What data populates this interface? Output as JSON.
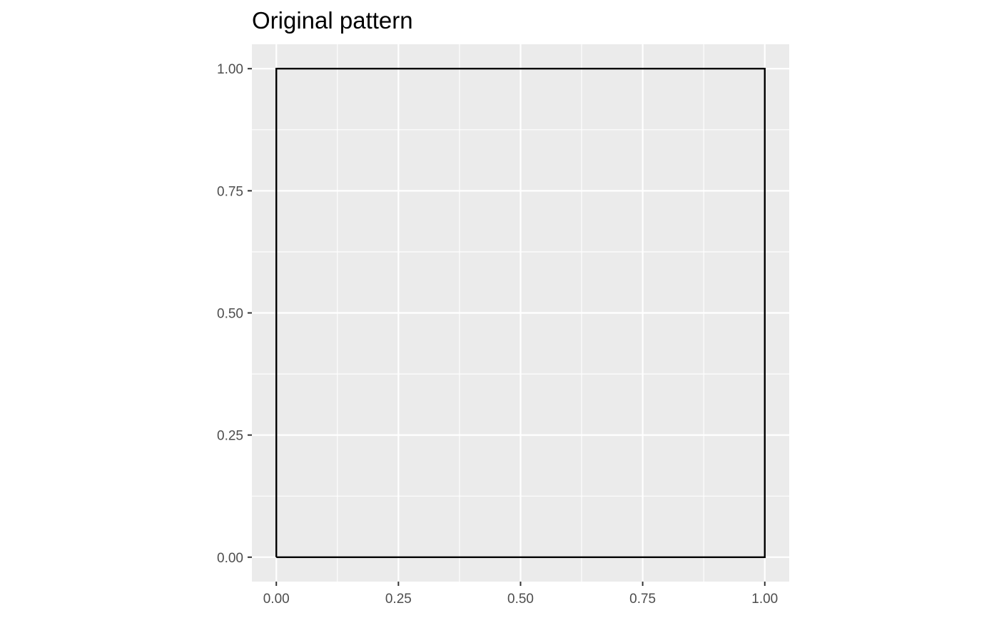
{
  "chart_data": {
    "type": "line",
    "title": "Original pattern",
    "xlabel": "",
    "ylabel": "",
    "xlim": [
      -0.05,
      1.05
    ],
    "ylim": [
      -0.05,
      1.05
    ],
    "x_ticks": [
      0,
      0.25,
      0.5,
      0.75,
      1
    ],
    "x_tick_labels": [
      "0.00",
      "0.25",
      "0.50",
      "0.75",
      "1.00"
    ],
    "y_ticks": [
      0,
      0.25,
      0.5,
      0.75,
      1
    ],
    "y_tick_labels": [
      "0.00",
      "0.25",
      "0.50",
      "0.75",
      "1.00"
    ],
    "grid": true,
    "series": [
      {
        "x": [
          0,
          1,
          1,
          0,
          0
        ],
        "y": [
          0,
          0,
          1,
          1,
          0
        ]
      }
    ],
    "colors": {
      "panel": "#ebebeb",
      "grid": "#ffffff",
      "line": "#000000",
      "axis_text": "#4d4d4d",
      "tick": "#333333"
    }
  }
}
